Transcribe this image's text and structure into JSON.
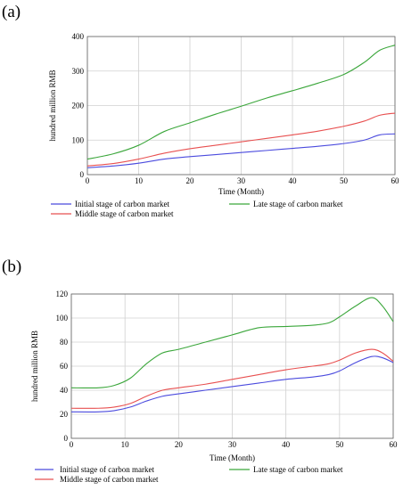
{
  "panels": [
    {
      "label": "(a)"
    },
    {
      "label": "(b)"
    }
  ],
  "chart_data": [
    {
      "type": "line",
      "xlabel": "Time (Month)",
      "ylabel": "hundred million RMB",
      "xlim": [
        0,
        60
      ],
      "ylim": [
        0,
        400
      ],
      "xticks": [
        "0",
        "10",
        "20",
        "30",
        "40",
        "50",
        "60"
      ],
      "yticks": [
        "0",
        "100",
        "200",
        "300",
        "400"
      ],
      "grid": true,
      "legend_position": "bottom",
      "series": [
        {
          "name": "Initial  stage of carbon market",
          "color": "#4b4bde",
          "x": [
            0,
            5,
            10,
            15,
            20,
            25,
            30,
            35,
            40,
            45,
            50,
            54,
            57,
            60
          ],
          "y": [
            20,
            25,
            33,
            45,
            52,
            58,
            64,
            70,
            76,
            82,
            90,
            100,
            115,
            118
          ]
        },
        {
          "name": "Middle  stage of carbon market",
          "color": "#e85050",
          "x": [
            0,
            5,
            10,
            15,
            20,
            25,
            30,
            35,
            40,
            45,
            50,
            54,
            57,
            60
          ],
          "y": [
            25,
            32,
            45,
            62,
            75,
            85,
            95,
            105,
            115,
            126,
            140,
            155,
            172,
            178
          ]
        },
        {
          "name": "Late stage of carbon market",
          "color": "#3aa63a",
          "x": [
            0,
            5,
            10,
            15,
            20,
            25,
            30,
            35,
            40,
            45,
            50,
            54,
            57,
            60
          ],
          "y": [
            45,
            60,
            85,
            125,
            150,
            175,
            198,
            222,
            243,
            265,
            290,
            325,
            360,
            375
          ]
        }
      ]
    },
    {
      "type": "line",
      "xlabel": "Time (Month)",
      "ylabel": "hundred million RMB",
      "xlim": [
        0,
        60
      ],
      "ylim": [
        0,
        120
      ],
      "xticks": [
        "0",
        "10",
        "20",
        "30",
        "40",
        "50",
        "60"
      ],
      "yticks": [
        "0",
        "20",
        "40",
        "60",
        "80",
        "100",
        "120"
      ],
      "grid": true,
      "legend_position": "bottom",
      "series": [
        {
          "name": "Initial  stage of carbon market",
          "color": "#4b4bde",
          "x": [
            0,
            5,
            8,
            11,
            14,
            17,
            20,
            25,
            30,
            35,
            40,
            45,
            48,
            50,
            53,
            56,
            58,
            60
          ],
          "y": [
            22,
            22,
            23,
            26,
            31,
            35,
            37,
            40,
            43,
            46,
            49,
            51,
            53,
            56,
            63,
            68,
            67,
            63
          ]
        },
        {
          "name": "Middle  stage of carbon market",
          "color": "#e85050",
          "x": [
            0,
            5,
            8,
            11,
            14,
            17,
            20,
            25,
            30,
            35,
            40,
            45,
            48,
            50,
            53,
            56,
            58,
            60
          ],
          "y": [
            25,
            25,
            26,
            29,
            35,
            40,
            42,
            45,
            49,
            53,
            57,
            60,
            62,
            65,
            71,
            74,
            71,
            64
          ]
        },
        {
          "name": "Late stage of carbon market",
          "color": "#3aa63a",
          "x": [
            0,
            5,
            8,
            11,
            14,
            17,
            20,
            25,
            30,
            35,
            40,
            45,
            48,
            50,
            53,
            56,
            58,
            60
          ],
          "y": [
            42,
            42,
            44,
            50,
            62,
            71,
            74,
            80,
            86,
            92,
            93,
            94,
            96,
            101,
            110,
            117,
            110,
            97
          ]
        }
      ]
    }
  ]
}
